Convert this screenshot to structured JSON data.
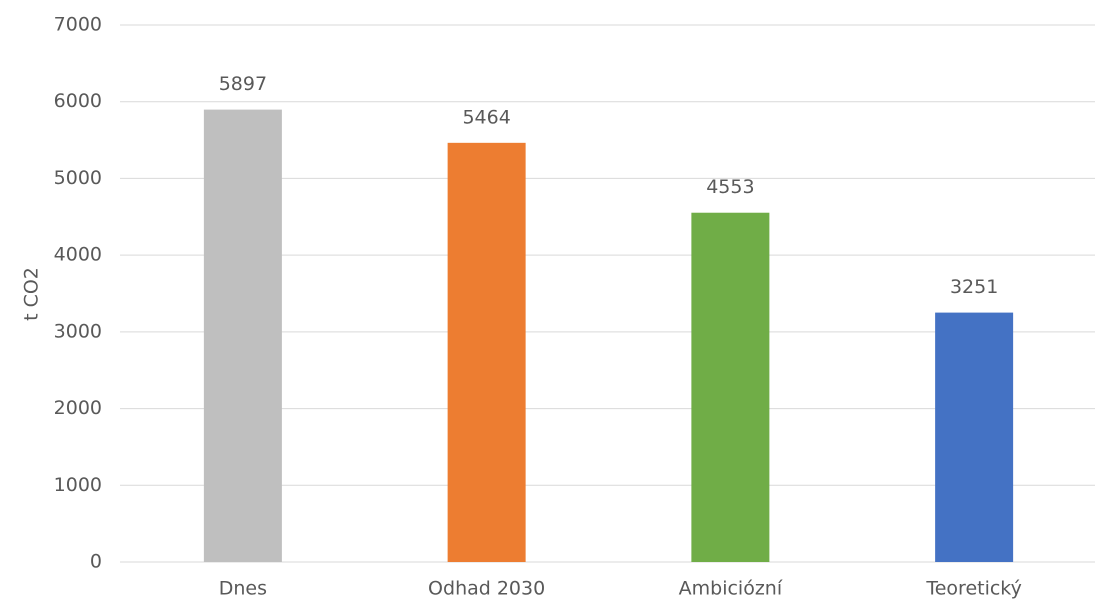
{
  "chart_data": {
    "type": "bar",
    "y_label": "t CO2",
    "categories": [
      "Dnes",
      "Odhad 2030",
      "Ambiciózní",
      "Teoretický"
    ],
    "values": [
      5897,
      5464,
      4553,
      3251
    ],
    "colors": [
      "#bfbfbf",
      "#ed7d31",
      "#70ad47",
      "#4472c4"
    ],
    "ylim": [
      0,
      7000
    ],
    "yticks": [
      0,
      1000,
      2000,
      3000,
      4000,
      5000,
      6000,
      7000
    ],
    "grid": true
  }
}
